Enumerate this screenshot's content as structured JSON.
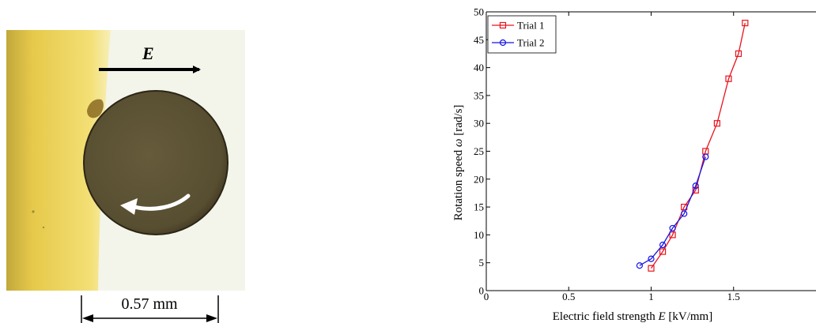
{
  "photo": {
    "field_label": "E",
    "scale_label": "0.57 mm"
  },
  "colors": {
    "trial1": "#e8141e",
    "trial2": "#1414e6",
    "yellow_band": "#efd24a",
    "background_light": "#f3f5ea",
    "particle": "#5c5233"
  },
  "chart_data": {
    "type": "line",
    "xlabel_prefix": "Electric field strength",
    "xlabel_symbol": "E",
    "xlabel_unit": "[kV/mm]",
    "ylabel_prefix": "Rotation speed",
    "ylabel_symbol": "ω",
    "ylabel_unit": "[rad/s]",
    "xlim": [
      0,
      2
    ],
    "ylim": [
      0,
      50
    ],
    "xticks": [
      0,
      0.5,
      1,
      1.5
    ],
    "xtick_labels": [
      "0",
      "0.5",
      "1",
      "1.5"
    ],
    "yticks": [
      0,
      5,
      10,
      15,
      20,
      25,
      30,
      35,
      40,
      45,
      50
    ],
    "legend_position": "top-left",
    "grid": false,
    "series": [
      {
        "name": "Trial 1",
        "marker": "square",
        "color": "#e8141e",
        "x": [
          1.0,
          1.07,
          1.13,
          1.2,
          1.27,
          1.33,
          1.4,
          1.47,
          1.53,
          1.57
        ],
        "y": [
          4,
          7,
          10,
          15,
          18,
          25,
          30,
          38,
          42.5,
          48
        ]
      },
      {
        "name": "Trial 2",
        "marker": "circle",
        "color": "#1414e6",
        "x": [
          0.93,
          1.0,
          1.07,
          1.13,
          1.2,
          1.27,
          1.33
        ],
        "y": [
          4.5,
          5.7,
          8.2,
          11.2,
          13.8,
          18.8,
          24
        ]
      }
    ]
  }
}
